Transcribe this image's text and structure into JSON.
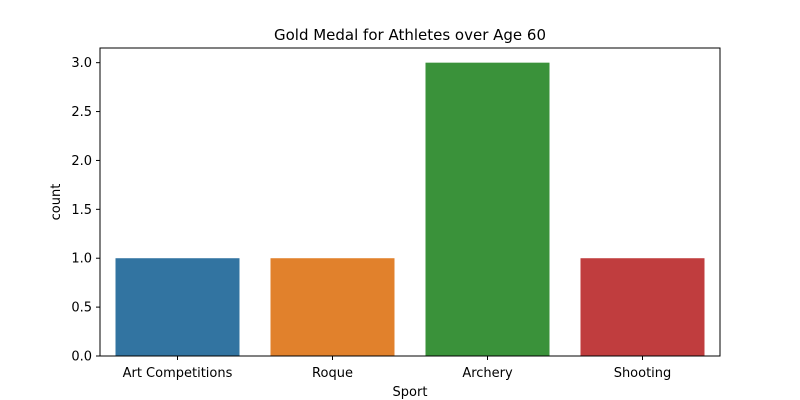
{
  "chart_data": {
    "type": "bar",
    "title": "Gold Medal for Athletes over Age 60",
    "xlabel": "Sport",
    "ylabel": "count",
    "categories": [
      "Art Competitions",
      "Roque",
      "Archery",
      "Shooting"
    ],
    "values": [
      1,
      1,
      3,
      1
    ],
    "colors": [
      "#3274a1",
      "#e1812c",
      "#3a923a",
      "#c03d3e"
    ],
    "ylim": [
      0,
      3.15
    ],
    "yticks": [
      0,
      0.5,
      1,
      1.5,
      2,
      2.5,
      3
    ],
    "ytick_labels": [
      "0.0",
      "0.5",
      "1.0",
      "1.5",
      "2.0",
      "2.5",
      "3.0"
    ],
    "grid": false,
    "legend": "none"
  }
}
